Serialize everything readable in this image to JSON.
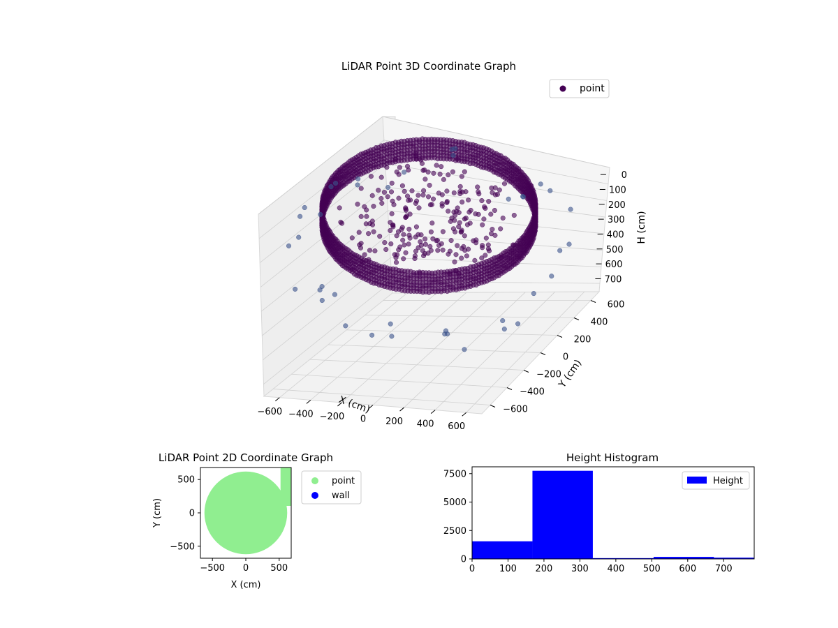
{
  "colors": {
    "point_dark": "#440154",
    "point_mid": "#3b528b",
    "point_cyan": "#21918c",
    "point_2d": "#90ee90",
    "wall": "#0000ff",
    "hist_bar": "#0000ff",
    "pane_gray": "#f2f2f2",
    "grid_gray": "#d0d0d0"
  },
  "chart_data": [
    {
      "type": "scatter",
      "title": "LiDAR Point 3D Coordinate Graph",
      "projection": "3d",
      "xlabel": "X (cm)",
      "ylabel": "Y (cm)",
      "zlabel": "H (cm)",
      "x_ticks": [
        "−600",
        "−400",
        "−200",
        "0",
        "200",
        "400",
        "600"
      ],
      "y_ticks": [
        "−600",
        "−400",
        "−200",
        "0",
        "200",
        "400",
        "600"
      ],
      "z_ticks": [
        "0",
        "100",
        "200",
        "300",
        "400",
        "500",
        "600",
        "700"
      ],
      "xlim": [
        -700,
        700
      ],
      "ylim": [
        -700,
        700
      ],
      "zlim": [
        0,
        750
      ],
      "z_inverted": true,
      "legend": {
        "entries": [
          "point"
        ],
        "placement": "top-right"
      },
      "grid": true,
      "colormap": "viridis",
      "description_series": [
        {
          "name": "point",
          "shape": "circular wall ring",
          "radius_cm": 620,
          "h_range": [
            150,
            330
          ]
        }
      ]
    },
    {
      "type": "scatter",
      "title": "LiDAR Point 2D Coordinate Graph",
      "xlabel": "X (cm)",
      "ylabel": "Y (cm)",
      "x_ticks": [
        "−500",
        "0",
        "500"
      ],
      "y_ticks": [
        "500",
        "0",
        "−500"
      ],
      "xlim": [
        -680,
        680
      ],
      "ylim": [
        -680,
        680
      ],
      "legend": {
        "entries": [
          "point",
          "wall"
        ],
        "placement": "outside-right"
      },
      "series": [
        {
          "name": "point",
          "shape": "filled disc",
          "radius_cm": 620
        },
        {
          "name": "wall",
          "points": []
        }
      ]
    },
    {
      "type": "bar",
      "title": "Height Histogram",
      "histogram": true,
      "x_ticks": [
        "0",
        "100",
        "200",
        "300",
        "400",
        "500",
        "600",
        "700"
      ],
      "y_ticks": [
        "0",
        "2500",
        "5000",
        "7500"
      ],
      "xlim": [
        0,
        785
      ],
      "ylim": [
        0,
        8100
      ],
      "legend": {
        "entries": [
          "Height"
        ],
        "placement": "top-right"
      },
      "bins": [
        {
          "from": 0,
          "to": 168,
          "value": 1550
        },
        {
          "from": 168,
          "to": 336,
          "value": 7750
        },
        {
          "from": 336,
          "to": 505,
          "value": 70
        },
        {
          "from": 505,
          "to": 673,
          "value": 180
        },
        {
          "from": 673,
          "to": 785,
          "value": 110
        }
      ]
    }
  ]
}
